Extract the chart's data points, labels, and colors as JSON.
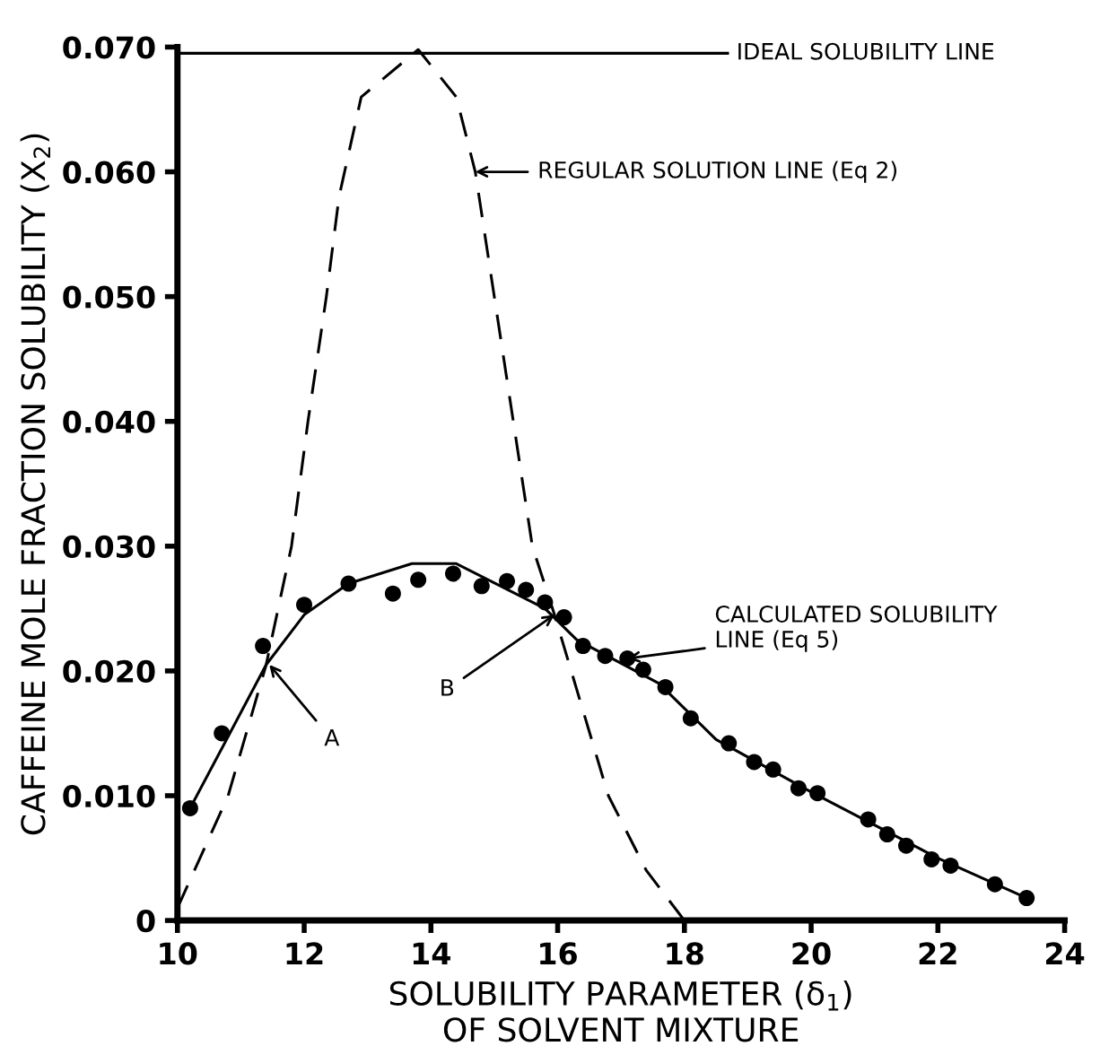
{
  "chart_data": {
    "type": "scatter",
    "xlabel": "SOLUBILITY PARAMETER (δ$_{1}$)\nOF SOLVENT MIXTURE",
    "ylabel": "CAFFEINE MOLE FRACTION SOLUBILITY (X$_{2}$)",
    "xlim": [
      10,
      24
    ],
    "xticks": [
      10,
      12,
      14,
      16,
      18,
      20,
      22,
      24
    ],
    "ylim": [
      0,
      0.07
    ],
    "yticks": [
      0,
      {
        "value": 0.01,
        "label": "0.010"
      },
      {
        "value": 0.02,
        "label": "0.020"
      },
      {
        "value": 0.03,
        "label": "0.030"
      },
      {
        "value": 0.04,
        "label": "0.040"
      },
      {
        "value": 0.05,
        "label": "0.050"
      },
      {
        "value": 0.06,
        "label": "0.060"
      },
      {
        "value": 0.07,
        "label": "0.070"
      }
    ],
    "grid": false,
    "legend": false,
    "series": [
      {
        "color": "#000000",
        "marker": "circle",
        "x": [
          10.2,
          10.7,
          11.35,
          12.0,
          12.7,
          13.4,
          13.8,
          14.35,
          14.8,
          15.2,
          15.5,
          15.8,
          16.1,
          16.4,
          16.75,
          17.1,
          17.35,
          17.7,
          18.1,
          18.7,
          19.1,
          19.4,
          19.8,
          20.1,
          20.9,
          21.2,
          21.5,
          21.9,
          22.2,
          22.9,
          23.4
        ],
        "values": [
          0.009,
          0.015,
          0.022,
          0.0253,
          0.027,
          0.0262,
          0.0273,
          0.0278,
          0.0268,
          0.0272,
          0.0265,
          0.0255,
          0.0243,
          0.022,
          0.0212,
          0.021,
          0.0201,
          0.0187,
          0.0162,
          0.0142,
          0.0127,
          0.0121,
          0.0106,
          0.0102,
          0.0081,
          0.0069,
          0.006,
          0.0049,
          0.0044,
          0.0029,
          0.0018
        ]
      },
      {
        "type": "line",
        "color": "#000000",
        "line_style": "solid",
        "marker": "none",
        "x": [
          10.2,
          11.4,
          12.0,
          12.7,
          13.7,
          14.4,
          15.8,
          16.3,
          17.6,
          18.5,
          20.0,
          22.0,
          23.4
        ],
        "values": [
          0.009,
          0.0205,
          0.0245,
          0.027,
          0.0286,
          0.0286,
          0.025,
          0.0225,
          0.019,
          0.0145,
          0.0103,
          0.005,
          0.0018
        ]
      },
      {
        "type": "line",
        "color": "#000000",
        "line_style": "dashed",
        "marker": "none",
        "x": [
          10.0,
          10.8,
          11.4,
          11.8,
          12.06,
          12.35,
          12.55,
          12.9,
          13.8,
          14.4,
          14.7,
          15.0,
          15.3,
          15.6,
          15.95,
          16.8,
          17.4,
          18.0
        ],
        "values": [
          0.001,
          0.01,
          0.0205,
          0.03,
          0.04,
          0.05,
          0.058,
          0.066,
          0.0698,
          0.066,
          0.06,
          0.05,
          0.04,
          0.03,
          0.0245,
          0.01,
          0.004,
          0.0
        ]
      }
    ],
    "ref_lines": [
      {
        "axis": "y",
        "value": 0.0695,
        "label": "IDEAL SOLUBILITY LINE",
        "color": "#000000",
        "line_style": "solid"
      }
    ],
    "annotations": [
      {
        "text": "REGULAR SOLUTION LINE (Eq 2)",
        "x": 14.7,
        "y": 0.06
      },
      {
        "text": "CALCULATED SOLUBILITY\nLINE (Eq 5)",
        "x": 17.1,
        "y": 0.021
      },
      {
        "text": "A",
        "x": 11.45,
        "y": 0.0205
      },
      {
        "text": "B",
        "x": 15.95,
        "y": 0.0245
      }
    ]
  }
}
